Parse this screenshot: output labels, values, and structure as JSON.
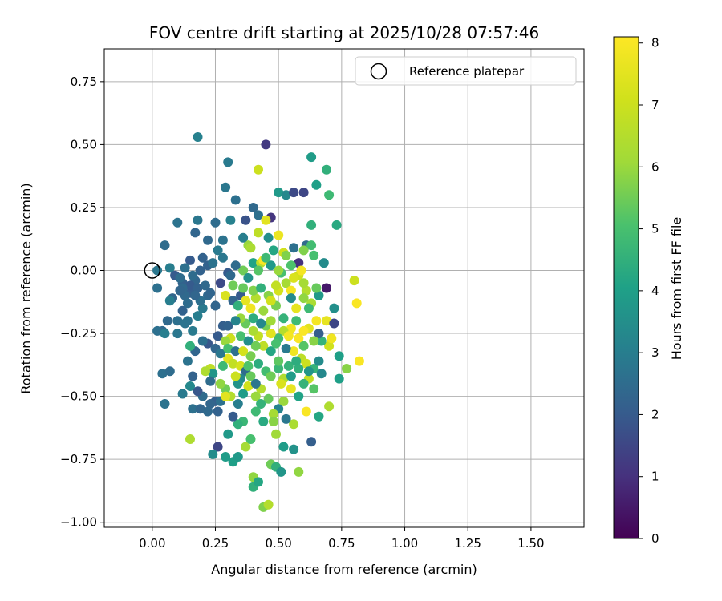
{
  "chart_data": {
    "type": "scatter",
    "title": "FOV centre drift starting at 2025/10/28 07:57:46",
    "xlabel": "Angular distance from reference (arcmin)",
    "ylabel": "Rotation from reference (arcmin)",
    "colorbar_label": "Hours from first FF file",
    "xlim": [
      -0.19,
      1.71
    ],
    "ylim": [
      -1.02,
      0.88
    ],
    "clim": [
      0,
      8.1
    ],
    "xticks": [
      0.0,
      0.25,
      0.5,
      0.75,
      1.0,
      1.25,
      1.5
    ],
    "xtick_labels": [
      "0.00",
      "0.25",
      "0.50",
      "0.75",
      "1.00",
      "1.25",
      "1.50"
    ],
    "yticks": [
      -1.0,
      -0.75,
      -0.5,
      -0.25,
      0.0,
      0.25,
      0.5,
      0.75
    ],
    "ytick_labels": [
      "−1.00",
      "−0.75",
      "−0.50",
      "−0.25",
      "0.00",
      "0.25",
      "0.50",
      "0.75"
    ],
    "cticks": [
      0,
      1,
      2,
      3,
      4,
      5,
      6,
      7,
      8
    ],
    "ctick_labels": [
      "0",
      "1",
      "2",
      "3",
      "4",
      "5",
      "6",
      "7",
      "8"
    ],
    "grid": true,
    "colormap": "viridis",
    "legend": {
      "label": "Reference platepar",
      "position": "top-right"
    },
    "reference_point": {
      "x": 0.0,
      "y": 0.0
    },
    "points": [
      [
        0.02,
        -0.07,
        2.6
      ],
      [
        0.05,
        0.1,
        2.5
      ],
      [
        0.02,
        0.0,
        2.8
      ],
      [
        0.07,
        0.01,
        3.0
      ],
      [
        0.1,
        0.19,
        2.7
      ],
      [
        0.12,
        -0.05,
        2.2
      ],
      [
        0.15,
        -0.09,
        2.1
      ],
      [
        0.17,
        0.15,
        2.3
      ],
      [
        0.18,
        0.53,
        3.1
      ],
      [
        0.2,
        0.05,
        2.2
      ],
      [
        0.22,
        -0.1,
        2.4
      ],
      [
        0.25,
        0.19,
        2.5
      ],
      [
        0.29,
        0.33,
        2.8
      ],
      [
        0.3,
        0.43,
        2.9
      ],
      [
        0.33,
        0.28,
        2.6
      ],
      [
        0.37,
        0.2,
        1.8
      ],
      [
        0.4,
        0.25,
        2.4
      ],
      [
        0.42,
        0.22,
        2.6
      ],
      [
        0.45,
        0.5,
        1.2
      ],
      [
        0.47,
        0.21,
        1.1
      ],
      [
        0.42,
        0.4,
        7.0
      ],
      [
        0.5,
        0.31,
        3.8
      ],
      [
        0.53,
        0.3,
        3.3
      ],
      [
        0.56,
        0.31,
        1.6
      ],
      [
        0.6,
        0.31,
        1.5
      ],
      [
        0.63,
        0.45,
        3.9
      ],
      [
        0.65,
        0.34,
        4.0
      ],
      [
        0.69,
        0.4,
        4.5
      ],
      [
        0.7,
        0.3,
        4.8
      ],
      [
        0.73,
        0.18,
        4.3
      ],
      [
        0.63,
        0.18,
        4.5
      ],
      [
        0.61,
        0.1,
        2.4
      ],
      [
        0.63,
        0.1,
        4.9
      ],
      [
        0.56,
        0.09,
        2.6
      ],
      [
        0.5,
        0.14,
        7.7
      ],
      [
        0.52,
        0.07,
        7.1
      ],
      [
        0.48,
        0.08,
        4.2
      ],
      [
        0.45,
        0.2,
        7.5
      ],
      [
        0.46,
        0.13,
        3.5
      ],
      [
        0.38,
        0.1,
        6.0
      ],
      [
        0.4,
        0.03,
        4.1
      ],
      [
        0.43,
        0.03,
        6.6
      ],
      [
        0.44,
        0.04,
        8.0
      ],
      [
        0.36,
        0.0,
        5.5
      ],
      [
        0.33,
        0.02,
        2.5
      ],
      [
        0.3,
        -0.01,
        2.0
      ],
      [
        0.28,
        0.05,
        2.8
      ],
      [
        0.26,
        0.08,
        2.9
      ],
      [
        0.22,
        0.02,
        2.2
      ],
      [
        0.19,
        0.0,
        2.2
      ],
      [
        0.17,
        -0.04,
        2.3
      ],
      [
        0.15,
        -0.06,
        2.0
      ],
      [
        0.13,
        -0.1,
        2.4
      ],
      [
        0.12,
        -0.16,
        2.2
      ],
      [
        0.1,
        -0.2,
        2.6
      ],
      [
        0.08,
        -0.11,
        2.3
      ],
      [
        0.06,
        -0.2,
        2.4
      ],
      [
        0.04,
        -0.24,
        2.4
      ],
      [
        0.02,
        -0.24,
        2.6
      ],
      [
        0.05,
        -0.25,
        3.0
      ],
      [
        0.07,
        -0.12,
        3.0
      ],
      [
        0.1,
        -0.25,
        2.8
      ],
      [
        0.13,
        -0.21,
        2.7
      ],
      [
        0.16,
        -0.24,
        2.9
      ],
      [
        0.18,
        -0.18,
        3.0
      ],
      [
        0.2,
        -0.15,
        2.9
      ],
      [
        0.22,
        -0.29,
        1.9
      ],
      [
        0.25,
        -0.31,
        2.3
      ],
      [
        0.26,
        -0.26,
        2.0
      ],
      [
        0.28,
        -0.22,
        2.1
      ],
      [
        0.3,
        -0.22,
        2.2
      ],
      [
        0.29,
        -0.1,
        7.3
      ],
      [
        0.32,
        -0.12,
        2.3
      ],
      [
        0.35,
        -0.1,
        2.0
      ],
      [
        0.37,
        -0.12,
        7.6
      ],
      [
        0.39,
        -0.15,
        7.8
      ],
      [
        0.41,
        -0.11,
        6.5
      ],
      [
        0.44,
        -0.16,
        6.0
      ],
      [
        0.46,
        -0.1,
        5.8
      ],
      [
        0.49,
        -0.14,
        5.6
      ],
      [
        0.5,
        -0.08,
        7.2
      ],
      [
        0.53,
        -0.05,
        6.2
      ],
      [
        0.55,
        -0.08,
        7.9
      ],
      [
        0.58,
        -0.02,
        7.1
      ],
      [
        0.61,
        -0.08,
        6.5
      ],
      [
        0.63,
        -0.13,
        6.3
      ],
      [
        0.66,
        -0.1,
        3.8
      ],
      [
        0.69,
        -0.07,
        0.5
      ],
      [
        0.72,
        -0.15,
        3.5
      ],
      [
        0.8,
        -0.04,
        7.0
      ],
      [
        0.81,
        -0.13,
        8.0
      ],
      [
        0.69,
        -0.2,
        7.6
      ],
      [
        0.72,
        -0.21,
        1.5
      ],
      [
        0.65,
        -0.2,
        7.9
      ],
      [
        0.62,
        -0.23,
        7.5
      ],
      [
        0.6,
        -0.24,
        8.0
      ],
      [
        0.57,
        -0.2,
        4.8
      ],
      [
        0.55,
        -0.23,
        7.8
      ],
      [
        0.52,
        -0.24,
        6.5
      ],
      [
        0.5,
        -0.27,
        4.8
      ],
      [
        0.47,
        -0.25,
        7.5
      ],
      [
        0.45,
        -0.22,
        5.6
      ],
      [
        0.42,
        -0.26,
        6.8
      ],
      [
        0.4,
        -0.24,
        6.3
      ],
      [
        0.37,
        -0.21,
        5.4
      ],
      [
        0.35,
        -0.19,
        6.0
      ],
      [
        0.33,
        -0.2,
        3.2
      ],
      [
        0.31,
        -0.27,
        7.0
      ],
      [
        0.29,
        -0.28,
        6.0
      ],
      [
        0.3,
        -0.35,
        7.5
      ],
      [
        0.32,
        -0.37,
        6.8
      ],
      [
        0.35,
        -0.38,
        7.2
      ],
      [
        0.37,
        -0.4,
        2.5
      ],
      [
        0.39,
        -0.34,
        5.6
      ],
      [
        0.42,
        -0.37,
        4.4
      ],
      [
        0.45,
        -0.4,
        4.9
      ],
      [
        0.47,
        -0.42,
        5.5
      ],
      [
        0.5,
        -0.39,
        4.7
      ],
      [
        0.52,
        -0.43,
        6.4
      ],
      [
        0.54,
        -0.38,
        4.6
      ],
      [
        0.56,
        -0.32,
        7.8
      ],
      [
        0.59,
        -0.35,
        6.7
      ],
      [
        0.61,
        -0.37,
        7.0
      ],
      [
        0.64,
        -0.39,
        4.6
      ],
      [
        0.66,
        -0.36,
        3.4
      ],
      [
        0.7,
        -0.3,
        7.1
      ],
      [
        0.74,
        -0.34,
        4.0
      ],
      [
        0.77,
        -0.39,
        5.8
      ],
      [
        0.82,
        -0.36,
        8.0
      ],
      [
        0.74,
        -0.43,
        4.0
      ],
      [
        0.7,
        -0.54,
        6.4
      ],
      [
        0.66,
        -0.58,
        4.2
      ],
      [
        0.64,
        -0.47,
        5.2
      ],
      [
        0.62,
        -0.43,
        6.8
      ],
      [
        0.6,
        -0.45,
        4.6
      ],
      [
        0.58,
        -0.5,
        4.1
      ],
      [
        0.55,
        -0.47,
        7.6
      ],
      [
        0.52,
        -0.52,
        6.0
      ],
      [
        0.5,
        -0.55,
        3.2
      ],
      [
        0.48,
        -0.57,
        6.2
      ],
      [
        0.46,
        -0.51,
        5.4
      ],
      [
        0.43,
        -0.47,
        6.5
      ],
      [
        0.41,
        -0.5,
        6.0
      ],
      [
        0.38,
        -0.46,
        7.1
      ],
      [
        0.36,
        -0.49,
        3.9
      ],
      [
        0.34,
        -0.53,
        3.0
      ],
      [
        0.31,
        -0.5,
        6.5
      ],
      [
        0.29,
        -0.47,
        5.5
      ],
      [
        0.27,
        -0.45,
        5.9
      ],
      [
        0.25,
        -0.52,
        2.1
      ],
      [
        0.23,
        -0.53,
        2.3
      ],
      [
        0.2,
        -0.5,
        2.5
      ],
      [
        0.18,
        -0.48,
        1.9
      ],
      [
        0.16,
        -0.42,
        2.2
      ],
      [
        0.14,
        -0.36,
        2.7
      ],
      [
        0.17,
        -0.32,
        2.3
      ],
      [
        0.2,
        -0.28,
        2.6
      ],
      [
        0.23,
        -0.39,
        6.7
      ],
      [
        0.24,
        -0.41,
        3.7
      ],
      [
        0.27,
        -0.33,
        2.8
      ],
      [
        0.05,
        -0.53,
        2.7
      ],
      [
        0.04,
        -0.41,
        2.6
      ],
      [
        0.07,
        -0.4,
        2.5
      ],
      [
        0.12,
        -0.49,
        2.9
      ],
      [
        0.15,
        -0.46,
        3.3
      ],
      [
        0.16,
        -0.55,
        2.6
      ],
      [
        0.19,
        -0.55,
        2.3
      ],
      [
        0.22,
        -0.56,
        2.4
      ],
      [
        0.26,
        -0.7,
        1.5
      ],
      [
        0.24,
        -0.73,
        3.4
      ],
      [
        0.29,
        -0.74,
        3.9
      ],
      [
        0.32,
        -0.76,
        4.0
      ],
      [
        0.34,
        -0.74,
        3.8
      ],
      [
        0.37,
        -0.7,
        6.2
      ],
      [
        0.39,
        -0.67,
        5.0
      ],
      [
        0.4,
        -0.82,
        5.9
      ],
      [
        0.4,
        -0.86,
        4.5
      ],
      [
        0.42,
        -0.84,
        4.2
      ],
      [
        0.44,
        -0.94,
        5.7
      ],
      [
        0.46,
        -0.93,
        6.5
      ],
      [
        0.47,
        -0.77,
        5.5
      ],
      [
        0.49,
        -0.78,
        4.5
      ],
      [
        0.51,
        -0.8,
        3.7
      ],
      [
        0.52,
        -0.7,
        3.9
      ],
      [
        0.56,
        -0.71,
        3.6
      ],
      [
        0.58,
        -0.8,
        5.9
      ],
      [
        0.63,
        -0.68,
        2.1
      ],
      [
        0.56,
        -0.61,
        6.3
      ],
      [
        0.53,
        -0.59,
        2.8
      ],
      [
        0.49,
        -0.65,
        6.1
      ],
      [
        0.48,
        -0.6,
        5.8
      ],
      [
        0.44,
        -0.6,
        4.3
      ],
      [
        0.43,
        -0.53,
        4.6
      ],
      [
        0.41,
        -0.56,
        4.8
      ],
      [
        0.36,
        -0.6,
        4.7
      ],
      [
        0.34,
        -0.61,
        4.5
      ],
      [
        0.3,
        -0.65,
        3.8
      ],
      [
        0.15,
        -0.67,
        6.4
      ],
      [
        0.35,
        -0.43,
        3.3
      ],
      [
        0.38,
        -0.38,
        5.1
      ],
      [
        0.28,
        -0.38,
        4.8
      ],
      [
        0.3,
        -0.31,
        5.0
      ],
      [
        0.33,
        -0.32,
        2.6
      ],
      [
        0.19,
        -0.12,
        2.6
      ],
      [
        0.12,
        -0.07,
        2.4
      ],
      [
        0.14,
        -0.13,
        2.5
      ],
      [
        0.15,
        -0.3,
        4.5
      ],
      [
        0.53,
        0.06,
        5.7
      ],
      [
        0.58,
        0.03,
        1.0
      ],
      [
        0.59,
        0.0,
        7.9
      ],
      [
        0.56,
        -0.03,
        7.3
      ],
      [
        0.51,
        -0.01,
        5.0
      ],
      [
        0.47,
        0.02,
        3.8
      ],
      [
        0.45,
        0.05,
        4.8
      ],
      [
        0.42,
        0.0,
        5.2
      ],
      [
        0.38,
        -0.03,
        3.6
      ],
      [
        0.36,
        -0.07,
        5.4
      ],
      [
        0.4,
        -0.08,
        5.7
      ],
      [
        0.43,
        -0.07,
        4.5
      ],
      [
        0.47,
        -0.12,
        7.1
      ],
      [
        0.49,
        -0.06,
        6.8
      ],
      [
        0.55,
        -0.11,
        3.4
      ],
      [
        0.6,
        -0.05,
        6.2
      ],
      [
        0.62,
        -0.15,
        4.8
      ],
      [
        0.65,
        -0.07,
        5.4
      ],
      [
        0.44,
        -0.3,
        6.7
      ],
      [
        0.47,
        -0.32,
        4.2
      ],
      [
        0.49,
        -0.29,
        5.0
      ],
      [
        0.53,
        -0.31,
        2.9
      ],
      [
        0.54,
        -0.26,
        7.9
      ],
      [
        0.58,
        -0.27,
        8.0
      ],
      [
        0.6,
        -0.3,
        5.2
      ],
      [
        0.67,
        -0.28,
        4.6
      ],
      [
        0.71,
        -0.27,
        7.8
      ],
      [
        0.38,
        -0.28,
        3.5
      ],
      [
        0.35,
        -0.26,
        5.0
      ],
      [
        0.4,
        -0.19,
        4.4
      ],
      [
        0.41,
        -0.3,
        5.5
      ],
      [
        0.25,
        -0.14,
        2.3
      ],
      [
        0.27,
        -0.05,
        1.6
      ],
      [
        0.32,
        -0.06,
        5.5
      ],
      [
        0.34,
        -0.14,
        4.5
      ],
      [
        0.28,
        0.12,
        2.7
      ],
      [
        0.22,
        0.12,
        2.4
      ],
      [
        0.18,
        0.2,
        2.8
      ],
      [
        0.31,
        0.2,
        3.1
      ],
      [
        0.36,
        0.13,
        3.0
      ],
      [
        0.39,
        0.09,
        6.3
      ],
      [
        0.42,
        0.15,
        6.7
      ],
      [
        0.5,
        0.0,
        6.0
      ],
      [
        0.55,
        0.02,
        5.1
      ],
      [
        0.6,
        0.08,
        5.7
      ],
      [
        0.64,
        0.06,
        5.0
      ],
      [
        0.51,
        -0.45,
        7.3
      ],
      [
        0.55,
        -0.42,
        3.9
      ],
      [
        0.58,
        -0.39,
        4.5
      ],
      [
        0.61,
        -0.56,
        8.0
      ],
      [
        0.39,
        -0.42,
        5.4
      ],
      [
        0.41,
        -0.45,
        2.8
      ],
      [
        0.34,
        -0.45,
        3.6
      ],
      [
        0.23,
        -0.44,
        2.5
      ],
      [
        0.21,
        -0.4,
        6.4
      ],
      [
        0.27,
        -0.52,
        2.6
      ],
      [
        0.32,
        -0.58,
        2.0
      ],
      [
        0.26,
        -0.56,
        2.2
      ],
      [
        0.29,
        -0.5,
        7.5
      ],
      [
        0.33,
        -0.42,
        7.0
      ],
      [
        0.36,
        -0.32,
        7.2
      ],
      [
        0.31,
        -0.02,
        2.4
      ],
      [
        0.24,
        0.03,
        2.7
      ],
      [
        0.15,
        0.04,
        2.0
      ],
      [
        0.13,
        0.01,
        2.6
      ],
      [
        0.09,
        -0.02,
        2.0
      ],
      [
        0.11,
        -0.08,
        2.3
      ],
      [
        0.16,
        -0.02,
        2.5
      ],
      [
        0.18,
        -0.07,
        2.2
      ],
      [
        0.21,
        -0.06,
        2.4
      ],
      [
        0.23,
        -0.09,
        2.3
      ],
      [
        0.17,
        -0.1,
        2.3
      ],
      [
        0.14,
        -0.2,
        2.7
      ],
      [
        0.11,
        -0.03,
        2.5
      ],
      [
        0.68,
        0.03,
        3.4
      ],
      [
        0.6,
        -0.11,
        5.9
      ],
      [
        0.57,
        -0.15,
        7.6
      ],
      [
        0.52,
        -0.19,
        4.6
      ],
      [
        0.47,
        -0.2,
        6.1
      ],
      [
        0.43,
        -0.21,
        3.3
      ],
      [
        0.5,
        -0.36,
        5.3
      ],
      [
        0.57,
        -0.36,
        4.4
      ],
      [
        0.62,
        -0.4,
        3.7
      ],
      [
        0.67,
        -0.41,
        3.3
      ],
      [
        0.66,
        -0.25,
        2.1
      ],
      [
        0.64,
        -0.28,
        5.8
      ]
    ]
  }
}
